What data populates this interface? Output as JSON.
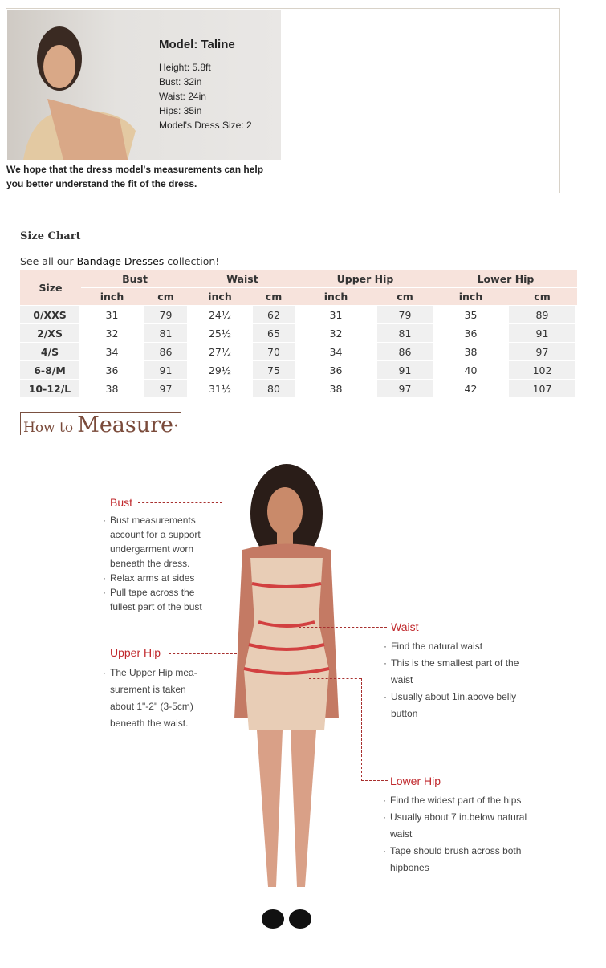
{
  "model": {
    "name": "Model: Taline",
    "stats": [
      "Height: 5.8ft",
      "Bust: 32in",
      "Waist: 24in",
      "Hips: 35in",
      "Model's Dress Size: 2"
    ],
    "note": "We hope that the dress model's measurements can help you better understand the fit of the dress."
  },
  "size_chart": {
    "title": "Size Chart",
    "link_prefix": "See all our ",
    "link_text": "Bandage Dresses",
    "link_suffix": " collection!",
    "headers": {
      "size": "Size",
      "groups": [
        "Bust",
        "Waist",
        "Upper Hip",
        "Lower Hip"
      ],
      "units": [
        "inch",
        "cm",
        "inch",
        "cm",
        "inch",
        "cm",
        "inch",
        "cm"
      ]
    },
    "rows": [
      [
        "0/XXS",
        "31",
        "79",
        "24½",
        "62",
        "31",
        "79",
        "35",
        "89"
      ],
      [
        "2/XS",
        "32",
        "81",
        "25½",
        "65",
        "32",
        "81",
        "36",
        "91"
      ],
      [
        "4/S",
        "34",
        "86",
        "27½",
        "70",
        "34",
        "86",
        "38",
        "97"
      ],
      [
        "6-8/M",
        "36",
        "91",
        "29½",
        "75",
        "36",
        "91",
        "40",
        "102"
      ],
      [
        "10-12/L",
        "38",
        "97",
        "31½",
        "80",
        "38",
        "97",
        "42",
        "107"
      ]
    ]
  },
  "how_to": {
    "small": "How to",
    "big": "Measure"
  },
  "measure": {
    "bust": {
      "label": "Bust",
      "lines": [
        [
          "b",
          "Bust measurements"
        ],
        [
          "",
          "account for a support"
        ],
        [
          "",
          "undergarment worn"
        ],
        [
          "",
          "beneath the dress."
        ],
        [
          "b",
          "Relax arms at sides"
        ],
        [
          "b",
          "Pull tape across the"
        ],
        [
          "",
          "fullest part of the bust"
        ]
      ]
    },
    "upper_hip": {
      "label": "Upper Hip",
      "lines": [
        [
          "b",
          "The Upper Hip mea-"
        ],
        [
          "",
          "surement is taken"
        ],
        [
          "",
          "about 1\"-2\" (3-5cm)"
        ],
        [
          "",
          "beneath the waist."
        ]
      ]
    },
    "waist": {
      "label": "Waist",
      "lines": [
        [
          "b",
          "Find the natural waist"
        ],
        [
          "b",
          "This is the smallest part of the"
        ],
        [
          "",
          "waist"
        ],
        [
          "b",
          "Usually about 1in.above belly"
        ],
        [
          "",
          "button"
        ]
      ]
    },
    "lower_hip": {
      "label": "Lower Hip",
      "lines": [
        [
          "b",
          "Find the widest part of the hips"
        ],
        [
          "b",
          "Usually about 7 in.below natural"
        ],
        [
          "",
          "waist"
        ],
        [
          "b",
          "Tape should brush across both"
        ],
        [
          "",
          "hipbones"
        ]
      ]
    }
  },
  "colors": {
    "header_bg": "#f7e3dc",
    "label_red": "#c0282c",
    "title_brown": "#7a4a3a"
  }
}
